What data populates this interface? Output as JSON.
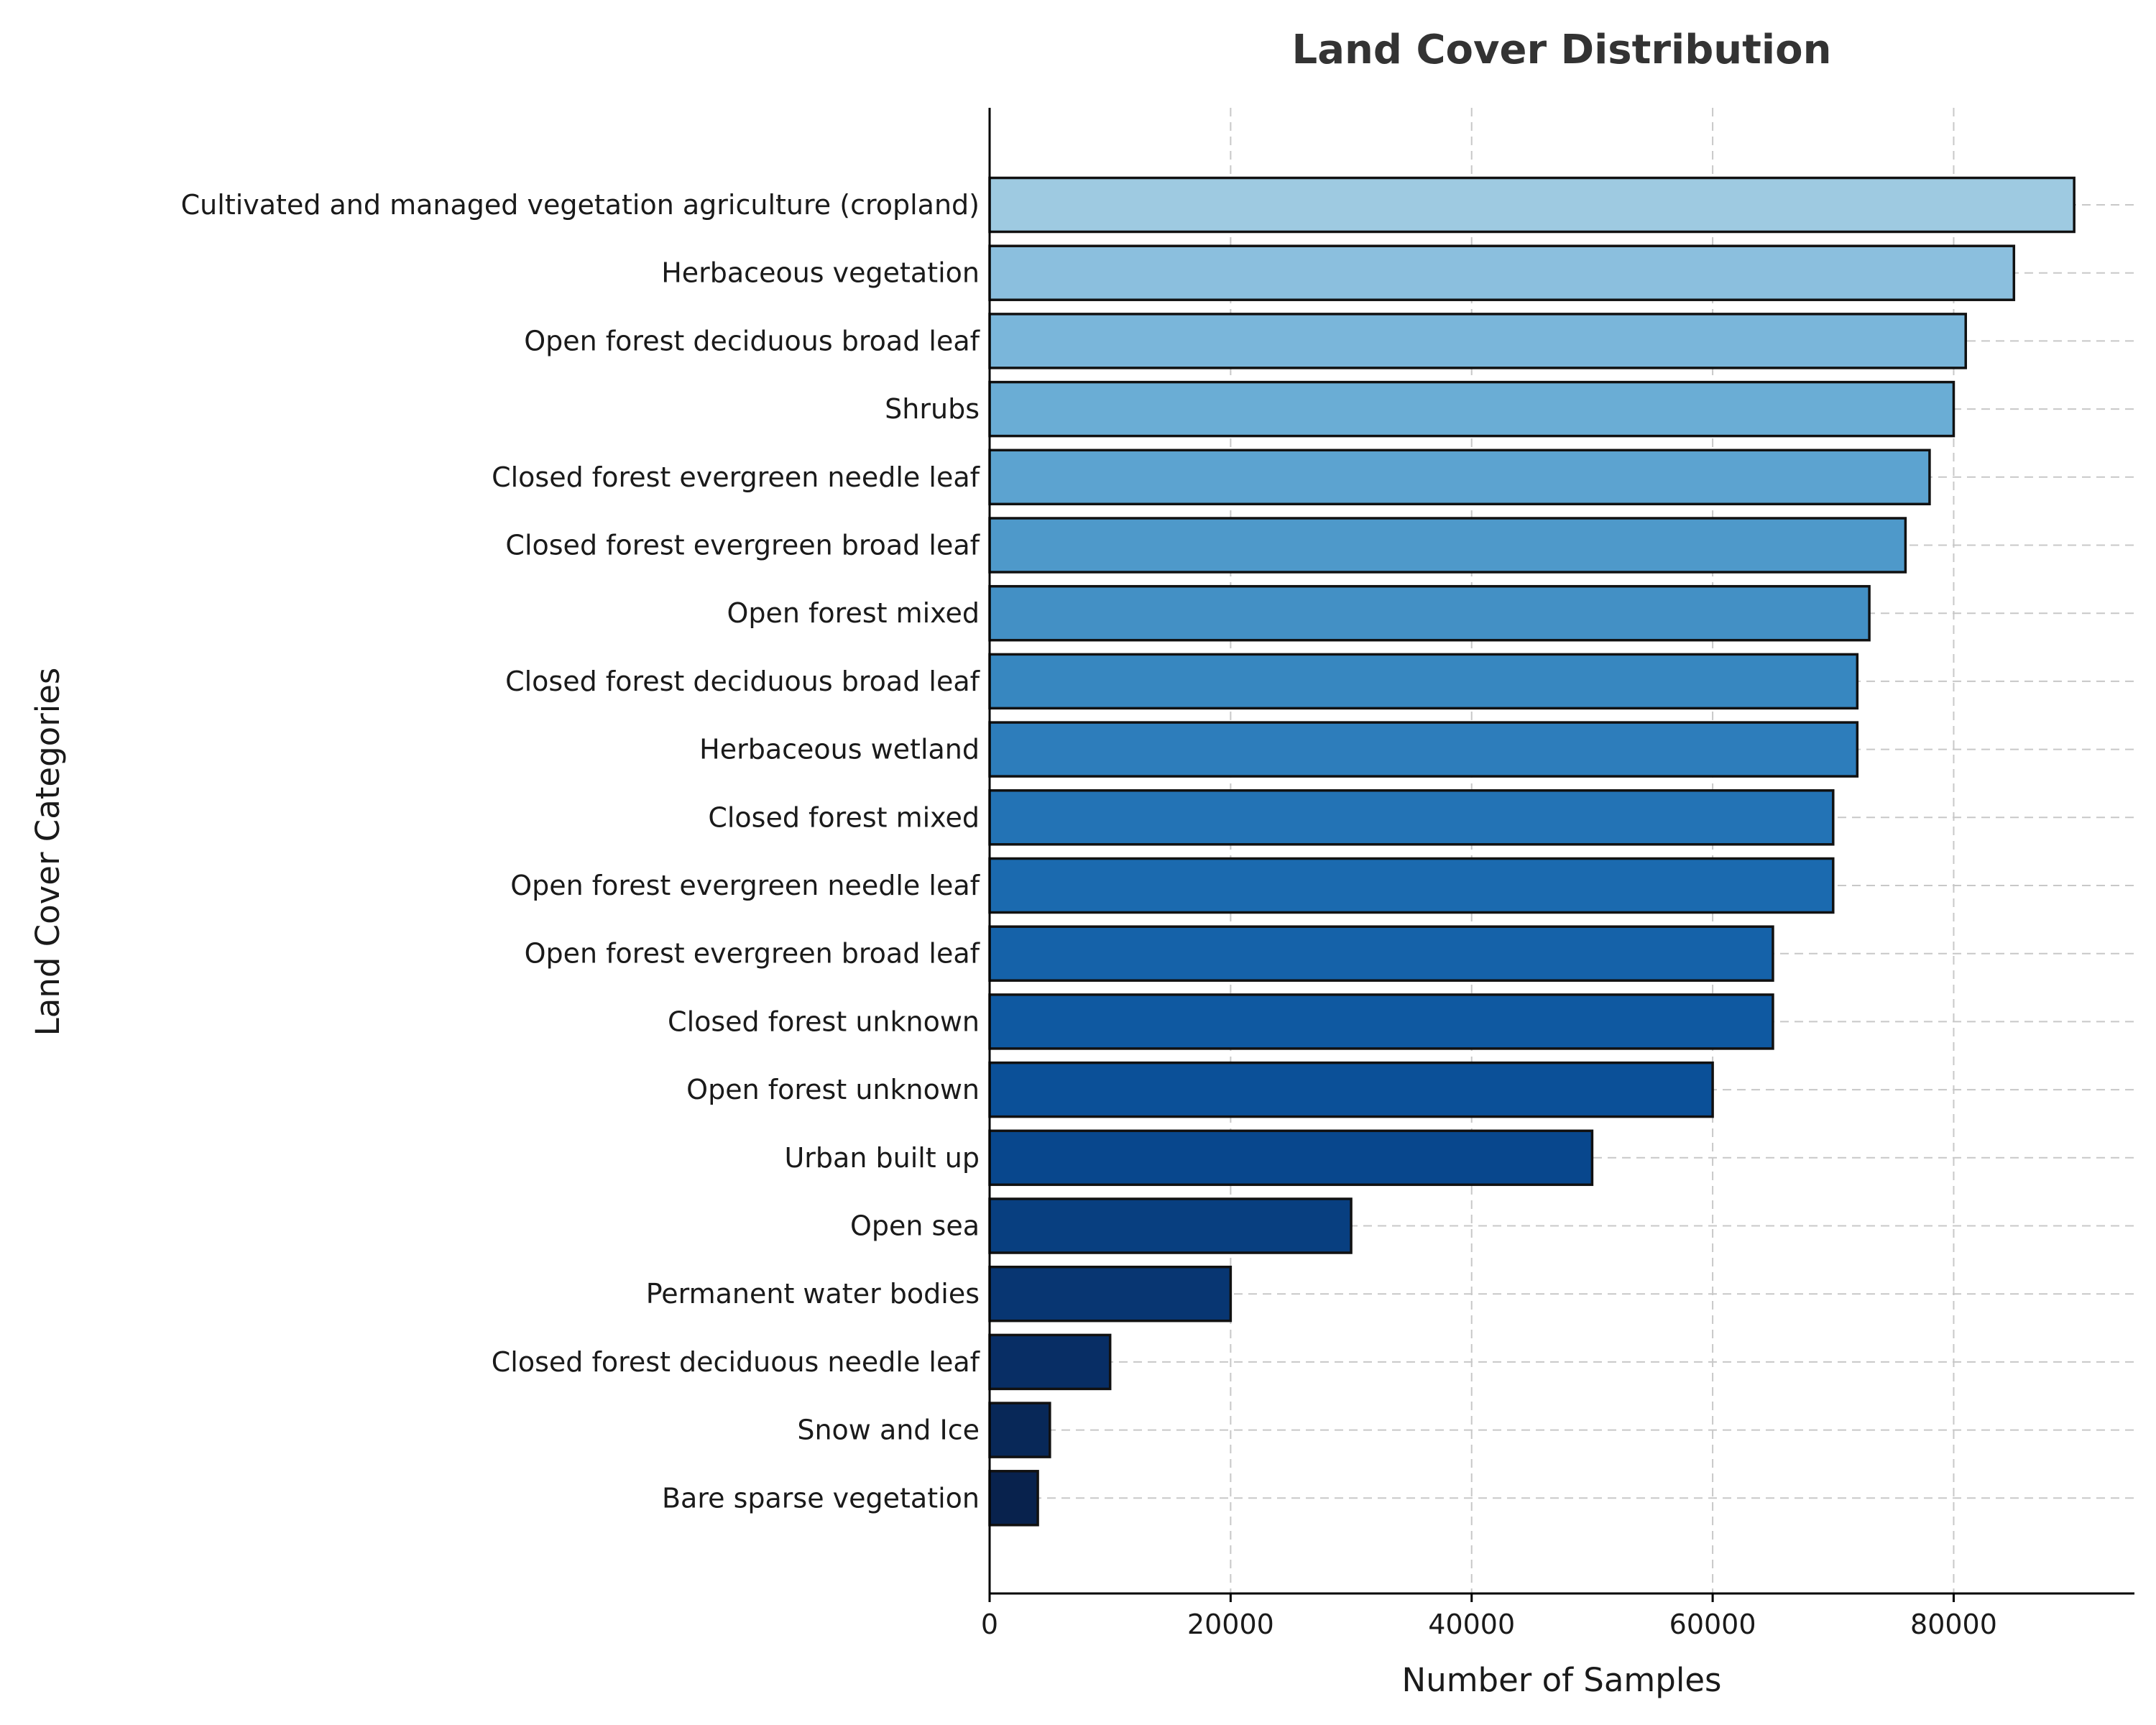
{
  "chart_data": {
    "type": "bar",
    "orientation": "horizontal",
    "title": "Land Cover Distribution",
    "xlabel": "Number of Samples",
    "ylabel": "Land Cover Categories",
    "xlim": [
      0,
      95000
    ],
    "xticks": [
      0,
      20000,
      40000,
      60000,
      80000
    ],
    "grid": true,
    "categories": [
      "Cultivated and managed vegetation agriculture (cropland)",
      "Herbaceous vegetation",
      "Open forest deciduous broad leaf",
      "Shrubs",
      "Closed forest evergreen needle leaf",
      "Closed forest evergreen broad leaf",
      "Open forest mixed",
      "Closed forest deciduous broad leaf",
      "Herbaceous wetland",
      "Closed forest mixed",
      "Open forest evergreen needle leaf",
      "Open forest evergreen broad leaf",
      "Closed forest unknown",
      "Open forest unknown",
      "Urban built up",
      "Open sea",
      "Permanent water bodies",
      "Closed forest deciduous needle leaf",
      "Snow and Ice",
      "Bare sparse vegetation"
    ],
    "values": [
      90000,
      85000,
      81000,
      80000,
      78000,
      76000,
      73000,
      72000,
      72000,
      70000,
      70000,
      65000,
      65000,
      60000,
      50000,
      30000,
      20000,
      10000,
      5000,
      4000
    ],
    "colors": [
      "#9ecae1",
      "#8bbfde",
      "#7ab6da",
      "#6aadd5",
      "#5ca3d0",
      "#4e99ca",
      "#4390c5",
      "#3787c0",
      "#2d7dbb",
      "#2373b5",
      "#1b6aaf",
      "#1562a9",
      "#0f59a1",
      "#0b5098",
      "#08478d",
      "#083f80",
      "#083672",
      "#082e65",
      "#082858",
      "#08224d"
    ]
  }
}
